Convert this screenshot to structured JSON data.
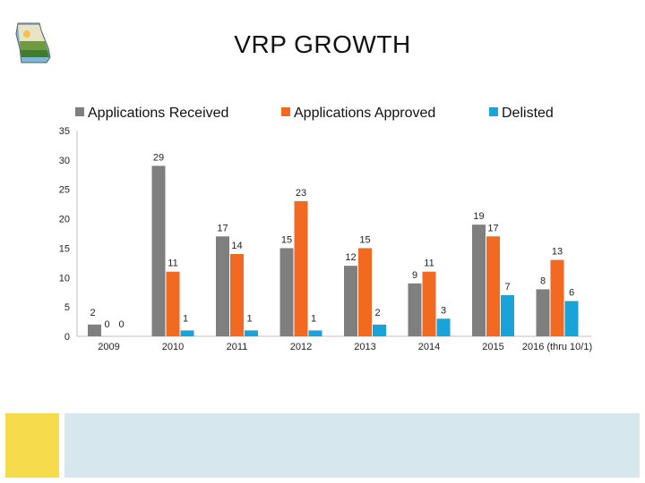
{
  "slide": {
    "title": "VRP GROWTH"
  },
  "colors": {
    "received": "#7f7f7f",
    "approved": "#f26a21",
    "delisted": "#1aa3d8"
  },
  "chart_data": {
    "type": "bar",
    "title": "VRP GROWTH",
    "xlabel": "",
    "ylabel": "",
    "ylim": [
      0,
      35
    ],
    "yticks": [
      0,
      5,
      10,
      15,
      20,
      25,
      30,
      35
    ],
    "grid": false,
    "legend_position": "top",
    "categories": [
      "2009",
      "2010",
      "2011",
      "2012",
      "2013",
      "2014",
      "2015",
      "2016 (thru 10/1)"
    ],
    "series": [
      {
        "name": "Applications Received",
        "color": "#7f7f7f",
        "values": [
          2,
          29,
          17,
          15,
          12,
          9,
          19,
          8
        ]
      },
      {
        "name": "Applications Approved",
        "color": "#f26a21",
        "values": [
          0,
          11,
          14,
          23,
          15,
          11,
          17,
          13
        ]
      },
      {
        "name": "Delisted",
        "color": "#1aa3d8",
        "values": [
          0,
          1,
          1,
          1,
          2,
          3,
          7,
          6
        ]
      }
    ]
  }
}
